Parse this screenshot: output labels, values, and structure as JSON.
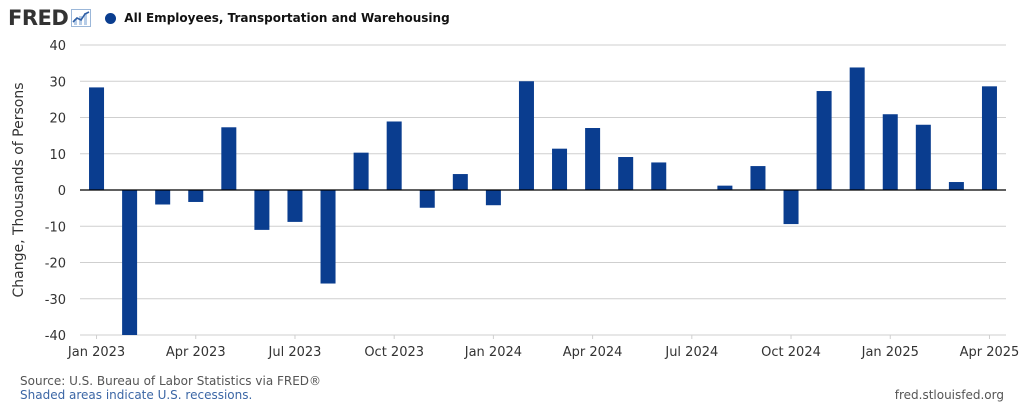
{
  "header": {
    "logo_text": "FRED",
    "series_label": "All Employees, Transportation and Warehousing"
  },
  "colors": {
    "bar": "#0a3d8f",
    "grid": "#cfcfcf",
    "zero_line": "#000000",
    "text": "#333333",
    "note": "#3b66a5"
  },
  "chart_data": {
    "type": "bar",
    "ylabel": "Change, Thousands of Persons",
    "ylim": [
      -40,
      40
    ],
    "y_ticks": [
      40,
      30,
      20,
      10,
      0,
      -10,
      -20,
      -30,
      -40
    ],
    "x_tick_labels": [
      "Jan 2023",
      "Apr 2023",
      "Jul 2023",
      "Oct 2023",
      "Jan 2024",
      "Apr 2024",
      "Jul 2024",
      "Oct 2024",
      "Jan 2025",
      "Apr 2025"
    ],
    "categories": [
      "2023-01",
      "2023-02",
      "2023-03",
      "2023-04",
      "2023-05",
      "2023-06",
      "2023-07",
      "2023-08",
      "2023-09",
      "2023-10",
      "2023-11",
      "2023-12",
      "2024-01",
      "2024-02",
      "2024-03",
      "2024-04",
      "2024-05",
      "2024-06",
      "2024-07",
      "2024-08",
      "2024-09",
      "2024-10",
      "2024-11",
      "2024-12",
      "2025-01",
      "2025-02",
      "2025-03",
      "2025-04"
    ],
    "values": [
      28.3,
      -40.0,
      -4.0,
      -3.3,
      17.3,
      -11.0,
      -8.8,
      -25.8,
      10.3,
      18.9,
      -4.9,
      4.4,
      -4.2,
      30.0,
      11.4,
      17.1,
      9.1,
      7.6,
      0.0,
      1.2,
      6.6,
      -9.4,
      27.3,
      33.8,
      20.9,
      18.0,
      2.2,
      28.6
    ],
    "grid": true,
    "legend": "top-left"
  },
  "footer": {
    "source": "Source: U.S. Bureau of Labor Statistics via FRED®",
    "shaded_note": "Shaded areas indicate U.S. recessions.",
    "site": "fred.stlouisfed.org"
  }
}
